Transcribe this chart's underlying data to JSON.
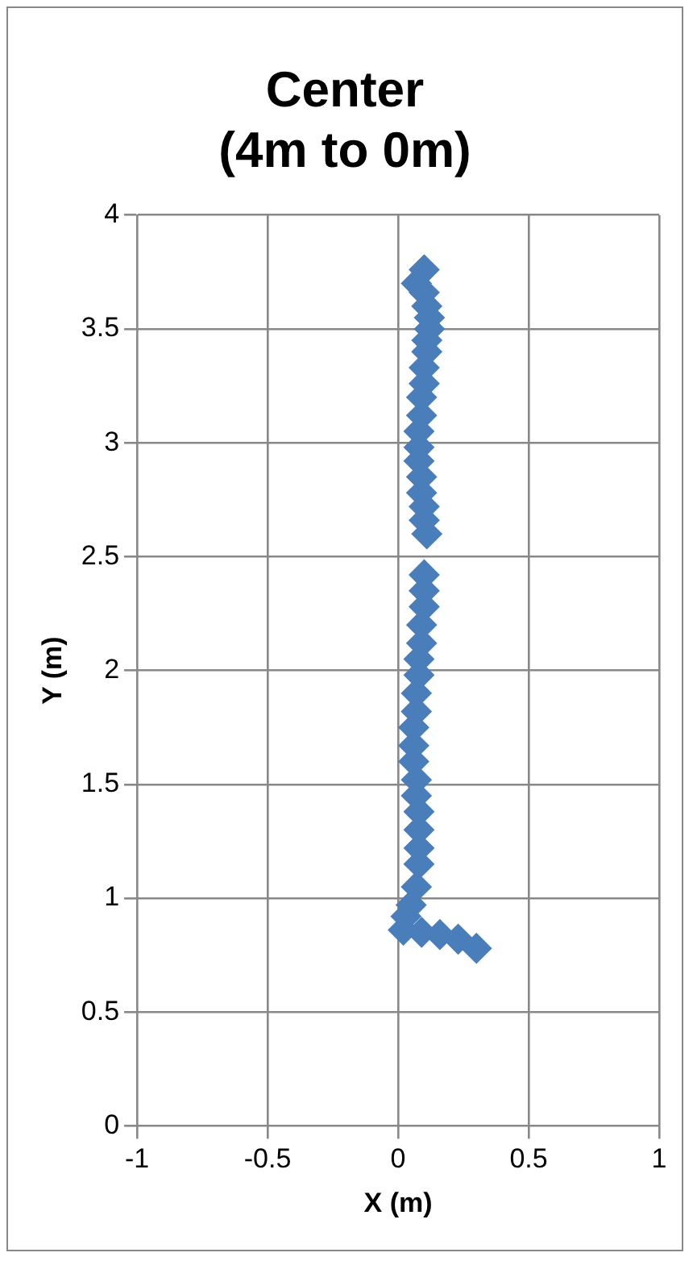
{
  "chart_data": {
    "type": "scatter",
    "title": "Center\n(4m to 0m)",
    "xlabel": "X (m)",
    "ylabel": "Y (m)",
    "xlim": [
      -1,
      1
    ],
    "xticks": [
      -1,
      -0.5,
      0,
      0.5,
      1
    ],
    "ylim": [
      0,
      4
    ],
    "yticks": [
      0,
      0.5,
      1,
      1.5,
      2,
      2.5,
      3,
      3.5,
      4
    ],
    "grid": true,
    "marker": "diamond",
    "legend": false,
    "series": [
      {
        "color": "#4a7ebb",
        "x": [
          0.1,
          0.07,
          0.1,
          0.11,
          0.12,
          0.12,
          0.11,
          0.11,
          0.1,
          0.1,
          0.09,
          0.09,
          0.08,
          0.08,
          0.08,
          0.09,
          0.09,
          0.1,
          0.1,
          0.11,
          0.1,
          0.1,
          0.1,
          0.09,
          0.09,
          0.08,
          0.08,
          0.07,
          0.07,
          0.06,
          0.06,
          0.06,
          0.07,
          0.07,
          0.08,
          0.08,
          0.08,
          0.08,
          0.07,
          0.05,
          0.03,
          0.02,
          0.09,
          0.16,
          0.23,
          0.3
        ],
        "values": [
          3.76,
          3.7,
          3.66,
          3.6,
          3.55,
          3.5,
          3.45,
          3.4,
          3.33,
          3.26,
          3.2,
          3.12,
          3.05,
          2.98,
          2.92,
          2.85,
          2.78,
          2.72,
          2.66,
          2.6,
          2.42,
          2.35,
          2.28,
          2.2,
          2.12,
          2.05,
          1.98,
          1.9,
          1.82,
          1.75,
          1.67,
          1.6,
          1.52,
          1.45,
          1.38,
          1.3,
          1.22,
          1.15,
          1.05,
          0.97,
          0.92,
          0.86,
          0.85,
          0.84,
          0.82,
          0.78
        ]
      }
    ]
  }
}
